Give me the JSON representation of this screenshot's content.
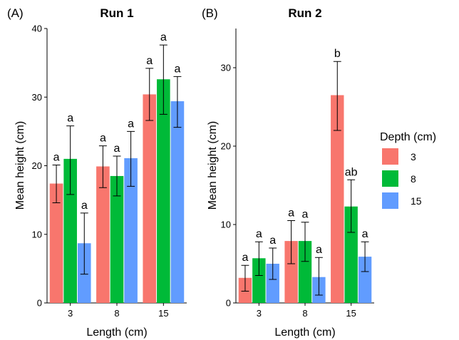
{
  "colors": {
    "3": "#F8766D",
    "8": "#00BA38",
    "15": "#619CFF"
  },
  "legend": {
    "title": "Depth (cm)",
    "labels": [
      "3",
      "8",
      "15"
    ]
  },
  "chart_data": [
    {
      "panel_label": "(A)",
      "type": "bar",
      "title": "Run 1",
      "xlabel": "Length (cm)",
      "ylabel": "Mean height (cm)",
      "categories": [
        "3",
        "8",
        "15"
      ],
      "ylim": [
        0,
        40
      ],
      "yticks": [
        0,
        10,
        20,
        30,
        40
      ],
      "series": [
        {
          "name": "3",
          "values": [
            17.4,
            19.9,
            30.4
          ],
          "err_low": [
            14.6,
            16.8,
            26.6
          ],
          "err_high": [
            20.1,
            22.9,
            34.2
          ],
          "labels": [
            "a",
            "a",
            "a"
          ]
        },
        {
          "name": "8",
          "values": [
            21.0,
            18.5,
            32.6
          ],
          "err_low": [
            15.8,
            15.6,
            27.5
          ],
          "err_high": [
            25.8,
            21.4,
            37.6
          ],
          "labels": [
            "a",
            "a",
            "a"
          ]
        },
        {
          "name": "15",
          "values": [
            8.7,
            21.1,
            29.4
          ],
          "err_low": [
            4.2,
            17.0,
            25.6
          ],
          "err_high": [
            13.1,
            25.0,
            33.0
          ],
          "labels": [
            "a",
            "a",
            "a"
          ]
        }
      ]
    },
    {
      "panel_label": "(B)",
      "type": "bar",
      "title": "Run 2",
      "xlabel": "Length (cm)",
      "ylabel": "Mean height (cm)",
      "categories": [
        "3",
        "8",
        "15"
      ],
      "ylim": [
        0,
        35
      ],
      "yticks": [
        0,
        10,
        20,
        30
      ],
      "series": [
        {
          "name": "3",
          "values": [
            3.2,
            7.9,
            26.5
          ],
          "err_low": [
            1.5,
            5.0,
            22.0
          ],
          "err_high": [
            4.8,
            10.5,
            30.8
          ],
          "labels": [
            "a",
            "a",
            "b"
          ]
        },
        {
          "name": "8",
          "values": [
            5.7,
            7.9,
            12.3
          ],
          "err_low": [
            3.5,
            5.3,
            9.0
          ],
          "err_high": [
            7.8,
            10.3,
            15.7
          ],
          "labels": [
            "a",
            "a",
            "ab"
          ]
        },
        {
          "name": "15",
          "values": [
            5.0,
            3.3,
            5.9
          ],
          "err_low": [
            3.0,
            1.0,
            4.0
          ],
          "err_high": [
            7.0,
            5.8,
            7.8
          ],
          "labels": [
            "a",
            "a",
            "a"
          ]
        }
      ]
    }
  ]
}
